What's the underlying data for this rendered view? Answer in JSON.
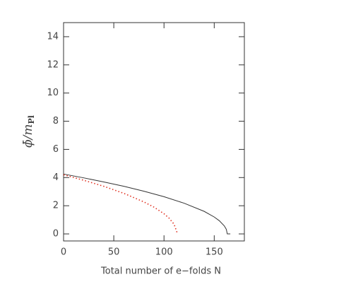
{
  "chart_data": {
    "type": "line",
    "xlabel": "Total number of e−folds N",
    "ylabel": "ϕ̄/m",
    "ylabel_subscript": "Pl",
    "xlim": [
      0,
      180
    ],
    "xticks": [
      0,
      50,
      100,
      150
    ],
    "ylim": [
      -0.5,
      15
    ],
    "yticks": [
      0,
      2,
      4,
      6,
      8,
      10,
      12,
      14
    ],
    "series": [
      {
        "color": "#333333",
        "style": "solid",
        "x": [
          0,
          20,
          40,
          60,
          80,
          100,
          120,
          140,
          150,
          155,
          160,
          162,
          163,
          166
        ],
        "values": [
          4.25,
          3.98,
          3.69,
          3.38,
          3.03,
          2.64,
          2.18,
          1.6,
          1.2,
          0.94,
          0.57,
          0.33,
          0,
          0
        ]
      },
      {
        "color": "#e03020",
        "style": "dotted",
        "x": [
          0,
          20,
          40,
          60,
          80,
          90,
          100,
          105,
          110,
          113
        ],
        "values": [
          4.2,
          3.81,
          3.38,
          2.88,
          2.27,
          1.9,
          1.43,
          1.12,
          0.69,
          0.1
        ]
      }
    ]
  }
}
